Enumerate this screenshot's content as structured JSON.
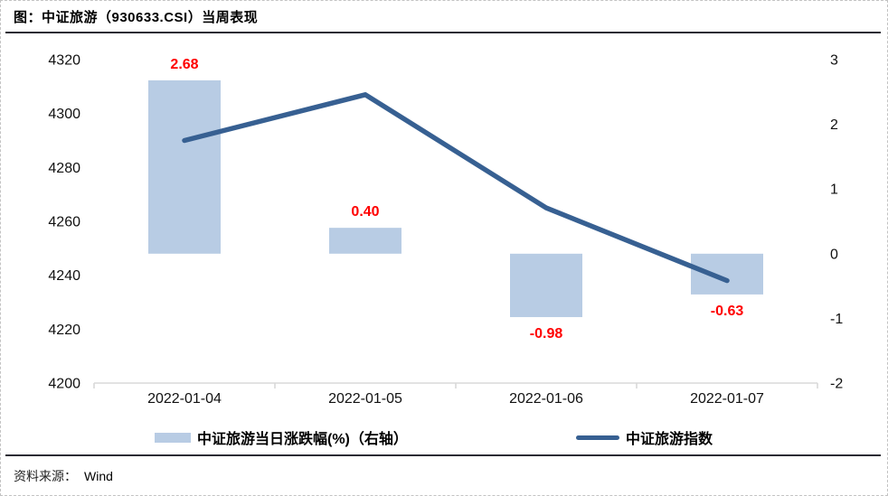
{
  "header": {
    "title": "图：中证旅游（930633.CSI）当周表现"
  },
  "legend": {
    "bar_label": "中证旅游当日涨跌幅(%)（右轴）",
    "line_label": "中证旅游指数"
  },
  "footer": {
    "source_label": "资料来源：",
    "source_value": "Wind"
  },
  "colors": {
    "bar_fill": "#B8CCE4",
    "line_stroke": "#376092",
    "data_label": "#FF0000",
    "axis_line": "#D9D9D9",
    "axis_text": "#111111"
  },
  "chart_data": {
    "type": "combo-bar-line",
    "title": "图：中证旅游（930633.CSI）当周表现",
    "categories": [
      "2022-01-04",
      "2022-01-05",
      "2022-01-06",
      "2022-01-07"
    ],
    "series": [
      {
        "name": "中证旅游当日涨跌幅(%)（右轴）",
        "type": "bar",
        "axis": "right",
        "values": [
          2.68,
          0.4,
          -0.98,
          -0.63
        ],
        "labels": [
          "2.68",
          "0.40",
          "-0.98",
          "-0.63"
        ],
        "color": "#B8CCE4",
        "label_color": "#FF0000"
      },
      {
        "name": "中证旅游指数",
        "type": "line",
        "axis": "left",
        "values": [
          4290,
          4307,
          4265,
          4238
        ],
        "color": "#376092"
      }
    ],
    "left_axis": {
      "min": 4200,
      "max": 4320,
      "ticks": [
        4320,
        4300,
        4280,
        4260,
        4240,
        4220,
        4200
      ]
    },
    "right_axis": {
      "min": -2,
      "max": 3,
      "ticks": [
        3,
        2,
        1,
        0,
        -1,
        -2
      ]
    },
    "grid": false,
    "legend_position": "bottom",
    "source": "Wind"
  }
}
